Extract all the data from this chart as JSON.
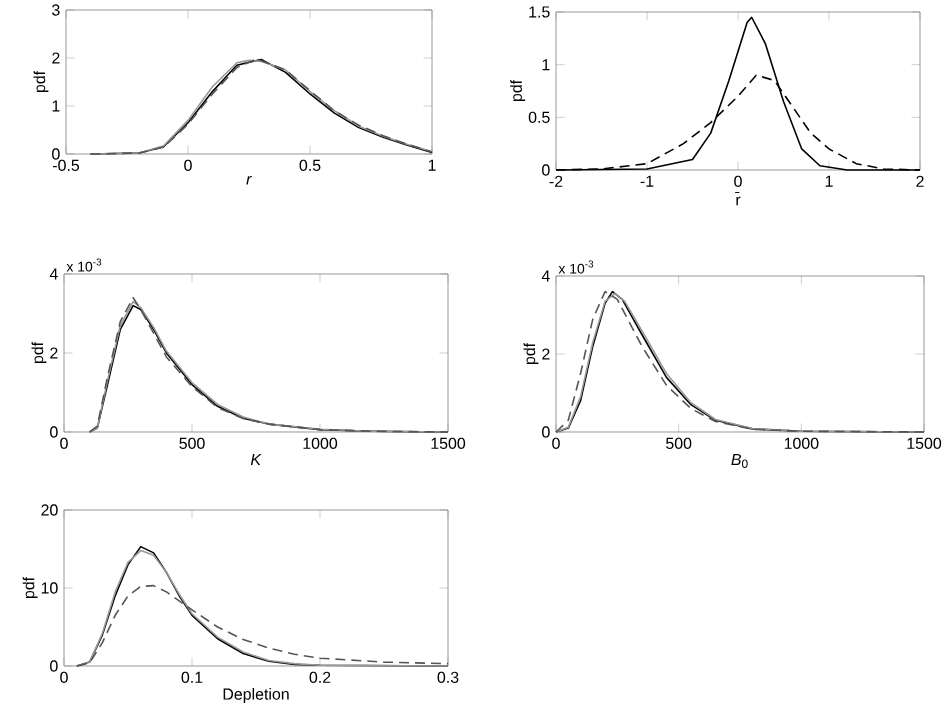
{
  "chart_data": [
    {
      "type": "line",
      "xlabel": "*r*",
      "ylabel": "pdf",
      "xlim": [
        -0.5,
        1
      ],
      "ylim": [
        0,
        3
      ],
      "xticks": [
        -0.5,
        0,
        0.5,
        1
      ],
      "yticks": [
        0,
        1,
        2,
        3
      ],
      "series": [
        {
          "color": "#000000",
          "line_style": "solid",
          "x": [
            -0.4,
            -0.2,
            -0.1,
            0,
            0.1,
            0.2,
            0.3,
            0.4,
            0.5,
            0.6,
            0.7,
            0.8,
            0.9,
            1.0
          ],
          "values": [
            0,
            0.02,
            0.15,
            0.65,
            1.3,
            1.85,
            1.97,
            1.7,
            1.25,
            0.85,
            0.55,
            0.35,
            0.18,
            0.03
          ]
        },
        {
          "color": "#999999",
          "line_style": "solid",
          "x": [
            -0.4,
            -0.2,
            -0.1,
            0,
            0.1,
            0.2,
            0.25,
            0.3,
            0.4,
            0.5,
            0.6,
            0.7,
            0.8,
            0.9,
            1.0
          ],
          "values": [
            0,
            0.02,
            0.17,
            0.7,
            1.4,
            1.9,
            1.95,
            1.93,
            1.75,
            1.3,
            0.9,
            0.58,
            0.37,
            0.2,
            0.05
          ]
        },
        {
          "color": "#555555",
          "line_style": "dashed",
          "x": [
            -0.4,
            -0.2,
            -0.1,
            0,
            0.1,
            0.2,
            0.28,
            0.4,
            0.5,
            0.6,
            0.7,
            0.8,
            0.9,
            1.0
          ],
          "values": [
            0,
            0.02,
            0.14,
            0.62,
            1.25,
            1.8,
            1.98,
            1.75,
            1.32,
            0.9,
            0.6,
            0.38,
            0.2,
            0.04
          ]
        }
      ]
    },
    {
      "type": "line",
      "xlabel": "r̄",
      "ylabel": "pdf",
      "xlim": [
        -2,
        2
      ],
      "ylim": [
        0,
        1.5
      ],
      "xticks": [
        -2,
        -1,
        0,
        1,
        2
      ],
      "yticks": [
        0,
        0.5,
        1,
        1.5
      ],
      "series": [
        {
          "color": "#000000",
          "line_style": "solid",
          "x": [
            -2,
            -1,
            -0.5,
            -0.3,
            -0.1,
            0.1,
            0.15,
            0.3,
            0.5,
            0.7,
            0.9,
            1.2,
            2
          ],
          "values": [
            0,
            0.01,
            0.1,
            0.35,
            0.85,
            1.4,
            1.45,
            1.2,
            0.65,
            0.2,
            0.04,
            0,
            0
          ]
        },
        {
          "color": "#000000",
          "line_style": "dashed",
          "x": [
            -2,
            -1.5,
            -1,
            -0.6,
            -0.3,
            0,
            0.2,
            0.4,
            0.6,
            0.8,
            1.0,
            1.3,
            1.6,
            2
          ],
          "values": [
            0,
            0.01,
            0.06,
            0.25,
            0.45,
            0.7,
            0.9,
            0.85,
            0.6,
            0.35,
            0.2,
            0.06,
            0.01,
            0
          ]
        }
      ]
    },
    {
      "type": "line",
      "xlabel": "*K*",
      "ylabel": "pdf",
      "annotations": [
        "x 10$^{-3}$"
      ],
      "xlim": [
        0,
        1500
      ],
      "ylim": [
        0,
        4
      ],
      "xticks": [
        0,
        500,
        1000,
        1500
      ],
      "yticks": [
        0,
        2,
        4
      ],
      "series": [
        {
          "color": "#000000",
          "line_style": "solid",
          "x": [
            100,
            130,
            170,
            220,
            270,
            300,
            350,
            400,
            500,
            600,
            700,
            800,
            1000,
            1200,
            1500
          ],
          "values": [
            0,
            0.1,
            1.2,
            2.6,
            3.2,
            3.1,
            2.6,
            2.0,
            1.2,
            0.65,
            0.35,
            0.2,
            0.06,
            0.02,
            0
          ]
        },
        {
          "color": "#999999",
          "line_style": "solid",
          "x": [
            100,
            130,
            170,
            220,
            270,
            300,
            350,
            400,
            500,
            600,
            700,
            800,
            1000,
            1200,
            1500
          ],
          "values": [
            0,
            0.1,
            1.3,
            2.7,
            3.3,
            3.15,
            2.65,
            2.05,
            1.25,
            0.7,
            0.38,
            0.2,
            0.07,
            0.02,
            0
          ]
        },
        {
          "color": "#555555",
          "line_style": "dashed",
          "x": [
            100,
            130,
            170,
            220,
            270,
            300,
            350,
            400,
            500,
            600,
            700,
            800,
            1000,
            1200,
            1500
          ],
          "values": [
            0,
            0.15,
            1.4,
            2.8,
            3.4,
            3.1,
            2.5,
            1.9,
            1.15,
            0.62,
            0.34,
            0.2,
            0.06,
            0.02,
            0
          ]
        }
      ]
    },
    {
      "type": "line",
      "xlabel": "*B*$_{0}$",
      "ylabel": "pdf",
      "annotations": [
        "x 10$^{-3}$"
      ],
      "xlim": [
        0,
        1500
      ],
      "ylim": [
        0,
        4
      ],
      "xticks": [
        0,
        500,
        1000,
        1500
      ],
      "yticks": [
        0,
        2,
        4
      ],
      "series": [
        {
          "color": "#000000",
          "line_style": "solid",
          "x": [
            0,
            50,
            100,
            150,
            200,
            230,
            270,
            350,
            450,
            550,
            650,
            800,
            1000,
            1500
          ],
          "values": [
            0,
            0.1,
            0.8,
            2.2,
            3.3,
            3.6,
            3.4,
            2.5,
            1.4,
            0.7,
            0.3,
            0.08,
            0.02,
            0
          ]
        },
        {
          "color": "#999999",
          "line_style": "solid",
          "x": [
            0,
            50,
            100,
            150,
            200,
            240,
            280,
            350,
            450,
            550,
            650,
            800,
            1000,
            1500
          ],
          "values": [
            0,
            0.12,
            0.9,
            2.3,
            3.35,
            3.55,
            3.35,
            2.6,
            1.5,
            0.75,
            0.32,
            0.09,
            0.02,
            0
          ]
        },
        {
          "color": "#555555",
          "line_style": "dashed",
          "x": [
            0,
            50,
            100,
            150,
            200,
            250,
            350,
            450,
            550,
            650,
            800,
            1000,
            1500
          ],
          "values": [
            0,
            0.3,
            1.5,
            2.9,
            3.6,
            3.4,
            2.2,
            1.2,
            0.6,
            0.27,
            0.07,
            0.02,
            0
          ]
        }
      ]
    },
    {
      "type": "line",
      "xlabel": "Depletion",
      "ylabel": "pdf",
      "xlim": [
        0,
        0.3
      ],
      "ylim": [
        0,
        20
      ],
      "xticks": [
        0,
        0.1,
        0.2,
        0.3
      ],
      "yticks": [
        0,
        10,
        20
      ],
      "series": [
        {
          "color": "#000000",
          "line_style": "solid",
          "x": [
            0.01,
            0.02,
            0.03,
            0.04,
            0.05,
            0.06,
            0.07,
            0.08,
            0.09,
            0.1,
            0.12,
            0.14,
            0.16,
            0.18,
            0.2,
            0.3
          ],
          "values": [
            0,
            0.5,
            4,
            9,
            13,
            15.3,
            14.5,
            12,
            9,
            6.5,
            3.5,
            1.6,
            0.6,
            0.2,
            0.1,
            0
          ]
        },
        {
          "color": "#999999",
          "line_style": "solid",
          "x": [
            0.01,
            0.02,
            0.03,
            0.04,
            0.05,
            0.06,
            0.07,
            0.08,
            0.09,
            0.1,
            0.12,
            0.14,
            0.16,
            0.18,
            0.2,
            0.3
          ],
          "values": [
            0,
            0.5,
            4.2,
            9.5,
            13.3,
            14.8,
            14.2,
            12,
            9.2,
            6.7,
            3.7,
            1.8,
            0.7,
            0.3,
            0.1,
            0
          ]
        },
        {
          "color": "#555555",
          "line_style": "dashed",
          "x": [
            0.01,
            0.02,
            0.03,
            0.04,
            0.05,
            0.06,
            0.07,
            0.08,
            0.1,
            0.12,
            0.14,
            0.16,
            0.18,
            0.2,
            0.25,
            0.3
          ],
          "values": [
            0,
            0.4,
            3,
            6.5,
            9,
            10.2,
            10.3,
            9.5,
            7.2,
            5,
            3.4,
            2.3,
            1.5,
            1.0,
            0.5,
            0.3
          ]
        }
      ]
    }
  ]
}
